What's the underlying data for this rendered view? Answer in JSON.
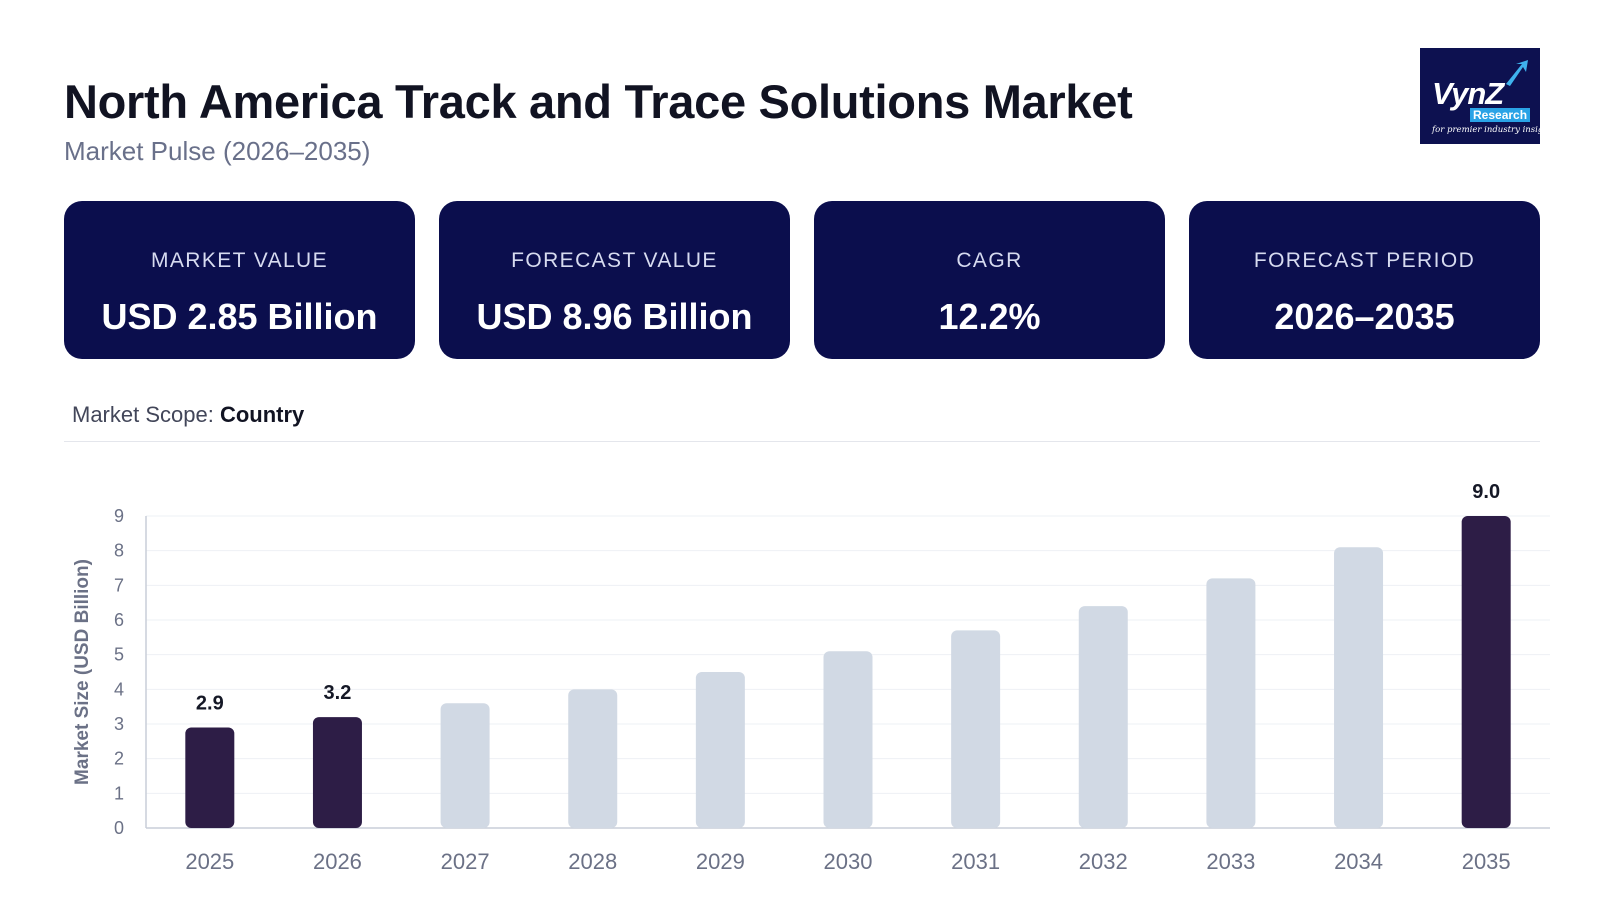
{
  "header": {
    "title": "North America Track and Trace Solutions Market",
    "subtitle": "Market Pulse (2026–2035)"
  },
  "logo": {
    "brand": "VynZ",
    "sub": "Research",
    "tagline": "for premier industry insights"
  },
  "cards": [
    {
      "label": "MARKET VALUE",
      "value": "USD 2.85 Billion"
    },
    {
      "label": "FORECAST VALUE",
      "value": "USD 8.96 Billion"
    },
    {
      "label": "CAGR",
      "value": "12.2%"
    },
    {
      "label": "FORECAST PERIOD",
      "value": "2026–2035"
    }
  ],
  "scope": {
    "label": "Market Scope:",
    "value": "Country"
  },
  "colors": {
    "card_bg": "#0b0e4d",
    "bar_highlight": "#2d1d46",
    "bar_muted": "#d1d9e4"
  },
  "chart_data": {
    "type": "bar",
    "categories": [
      "2025",
      "2026",
      "2027",
      "2028",
      "2029",
      "2030",
      "2031",
      "2032",
      "2033",
      "2034",
      "2035"
    ],
    "values": [
      2.9,
      3.2,
      3.6,
      4.0,
      4.5,
      5.1,
      5.7,
      6.4,
      7.2,
      8.1,
      9.0
    ],
    "highlighted": [
      "2025",
      "2026",
      "2035"
    ],
    "data_labels": {
      "2025": "2.9",
      "2026": "3.2",
      "2035": "9.0"
    },
    "ylabel": "Market Size (USD Billion)",
    "xlabel": "",
    "ylim": [
      0,
      9
    ],
    "yticks": [
      0,
      1,
      2,
      3,
      4,
      5,
      6,
      7,
      8,
      9
    ],
    "grid": true
  }
}
